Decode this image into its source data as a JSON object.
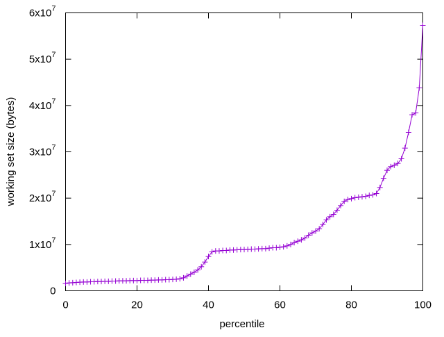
{
  "chart_data": {
    "type": "line",
    "title": "",
    "xlabel": "percentile",
    "ylabel": "working set size (bytes)",
    "xlim": [
      0,
      100
    ],
    "ylim": [
      0,
      60000000
    ],
    "x_ticks": [
      {
        "value": 0,
        "label": "0"
      },
      {
        "value": 20,
        "label": "20"
      },
      {
        "value": 40,
        "label": "40"
      },
      {
        "value": 60,
        "label": "60"
      },
      {
        "value": 80,
        "label": "80"
      },
      {
        "value": 100,
        "label": "100"
      }
    ],
    "y_ticks": [
      {
        "value": 0,
        "label": "0",
        "mantissa": "0",
        "exp": ""
      },
      {
        "value": 10000000,
        "label": "1x10^7",
        "mantissa": "1x10",
        "exp": "7"
      },
      {
        "value": 20000000,
        "label": "2x10^7",
        "mantissa": "2x10",
        "exp": "7"
      },
      {
        "value": 30000000,
        "label": "3x10^7",
        "mantissa": "3x10",
        "exp": "7"
      },
      {
        "value": 40000000,
        "label": "4x10^7",
        "mantissa": "4x10",
        "exp": "7"
      },
      {
        "value": 50000000,
        "label": "5x10^7",
        "mantissa": "5x10",
        "exp": "7"
      },
      {
        "value": 60000000,
        "label": "6x10^7",
        "mantissa": "6x10",
        "exp": "7"
      }
    ],
    "grid": false,
    "legend": "none",
    "series": [
      {
        "color": "#9400d3",
        "marker": "plus",
        "x": [
          0,
          1,
          2,
          3,
          4,
          5,
          6,
          7,
          8,
          9,
          10,
          11,
          12,
          13,
          14,
          15,
          16,
          17,
          18,
          19,
          20,
          21,
          22,
          23,
          24,
          25,
          26,
          27,
          28,
          29,
          30,
          31,
          32,
          33,
          34,
          35,
          36,
          37,
          38,
          39,
          40,
          41,
          42,
          43,
          44,
          45,
          46,
          47,
          48,
          49,
          50,
          51,
          52,
          53,
          54,
          55,
          56,
          57,
          58,
          59,
          60,
          61,
          62,
          63,
          64,
          65,
          66,
          67,
          68,
          69,
          70,
          71,
          72,
          73,
          74,
          75,
          76,
          77,
          78,
          79,
          80,
          81,
          82,
          83,
          84,
          85,
          86,
          87,
          88,
          89,
          90,
          91,
          92,
          93,
          94,
          95,
          96,
          97,
          98,
          99,
          100
        ],
        "y": [
          1600000,
          1700000,
          1750000,
          1800000,
          1850000,
          1900000,
          1900000,
          1950000,
          1950000,
          2000000,
          2000000,
          2050000,
          2050000,
          2100000,
          2100000,
          2150000,
          2150000,
          2150000,
          2200000,
          2200000,
          2200000,
          2250000,
          2250000,
          2250000,
          2300000,
          2300000,
          2350000,
          2350000,
          2400000,
          2400000,
          2450000,
          2500000,
          2600000,
          2800000,
          3200000,
          3600000,
          4000000,
          4500000,
          5200000,
          6200000,
          7400000,
          8400000,
          8600000,
          8600000,
          8700000,
          8700000,
          8800000,
          8800000,
          8850000,
          8900000,
          8900000,
          8950000,
          9000000,
          9000000,
          9050000,
          9100000,
          9100000,
          9200000,
          9300000,
          9300000,
          9400000,
          9500000,
          9700000,
          10000000,
          10400000,
          10700000,
          11000000,
          11400000,
          12000000,
          12500000,
          12900000,
          13400000,
          14300000,
          15300000,
          16000000,
          16500000,
          17400000,
          18400000,
          19300000,
          19700000,
          19900000,
          20100000,
          20200000,
          20300000,
          20400000,
          20600000,
          20700000,
          21000000,
          22300000,
          24300000,
          26000000,
          26800000,
          27100000,
          27500000,
          28500000,
          30800000,
          34200000,
          38000000,
          38400000,
          43800000,
          57300000
        ]
      }
    ]
  }
}
